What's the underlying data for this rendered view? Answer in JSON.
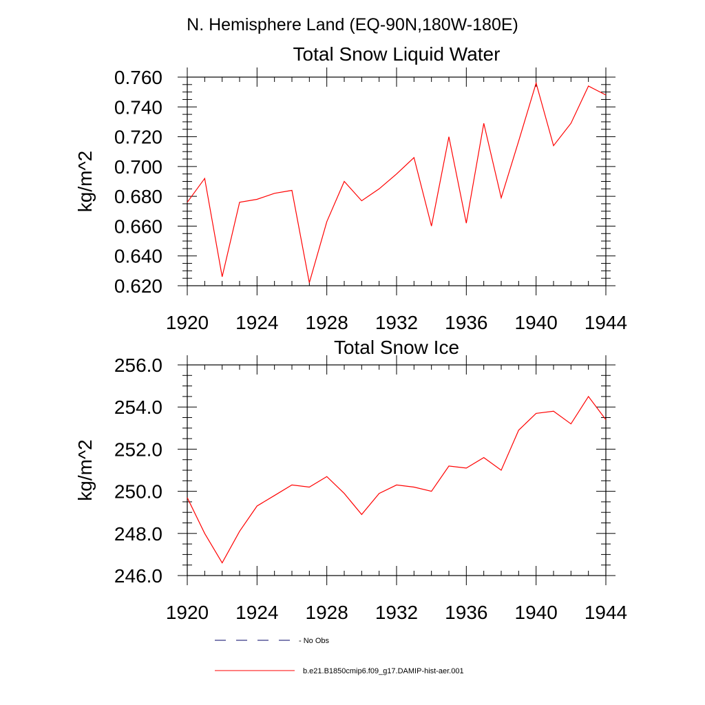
{
  "page_title": "N. Hemisphere Land (EQ-90N,180W-180E)",
  "colors": {
    "series": "#ff0000",
    "obs": "#000066",
    "axis": "#000000"
  },
  "chart_data": [
    {
      "type": "line",
      "title": "Total Snow Liquid Water",
      "ylabel": "kg/m^2",
      "xlim": [
        1920,
        1944
      ],
      "ylim": [
        0.62,
        0.76
      ],
      "x_ticks": [
        1920,
        1924,
        1928,
        1932,
        1936,
        1940,
        1944
      ],
      "x_tick_labels": [
        "1920",
        "1924",
        "1928",
        "1932",
        "1936",
        "1940",
        "1944"
      ],
      "y_ticks": [
        0.62,
        0.64,
        0.66,
        0.68,
        0.7,
        0.72,
        0.74,
        0.76
      ],
      "y_tick_labels": [
        "0.620",
        "0.640",
        "0.660",
        "0.680",
        "0.700",
        "0.720",
        "0.740",
        "0.760"
      ],
      "grid": false,
      "series": [
        {
          "name": "b.e21.B1850cmip6.f09_g17.DAMIP-hist-aer.001",
          "x": [
            1920,
            1921,
            1922,
            1923,
            1924,
            1925,
            1926,
            1927,
            1928,
            1929,
            1930,
            1931,
            1932,
            1933,
            1934,
            1935,
            1936,
            1937,
            1938,
            1939,
            1940,
            1941,
            1942,
            1943,
            1944
          ],
          "y": [
            0.676,
            0.692,
            0.626,
            0.676,
            0.678,
            0.682,
            0.684,
            0.622,
            0.663,
            0.69,
            0.677,
            0.685,
            0.695,
            0.706,
            0.66,
            0.72,
            0.662,
            0.729,
            0.679,
            0.717,
            0.756,
            0.714,
            0.729,
            0.754,
            0.748
          ]
        }
      ]
    },
    {
      "type": "line",
      "title": "Total Snow Ice",
      "ylabel": "kg/m^2",
      "xlim": [
        1920,
        1944
      ],
      "ylim": [
        246.0,
        256.0
      ],
      "x_ticks": [
        1920,
        1924,
        1928,
        1932,
        1936,
        1940,
        1944
      ],
      "x_tick_labels": [
        "1920",
        "1924",
        "1928",
        "1932",
        "1936",
        "1940",
        "1944"
      ],
      "y_ticks": [
        246.0,
        248.0,
        250.0,
        252.0,
        254.0,
        256.0
      ],
      "y_tick_labels": [
        "246.0",
        "248.0",
        "250.0",
        "252.0",
        "254.0",
        "256.0"
      ],
      "grid": false,
      "series": [
        {
          "name": "b.e21.B1850cmip6.f09_g17.DAMIP-hist-aer.001",
          "x": [
            1920,
            1921,
            1922,
            1923,
            1924,
            1925,
            1926,
            1927,
            1928,
            1929,
            1930,
            1931,
            1932,
            1933,
            1934,
            1935,
            1936,
            1937,
            1938,
            1939,
            1940,
            1941,
            1942,
            1943,
            1944
          ],
          "y": [
            249.7,
            248.0,
            246.6,
            248.1,
            249.3,
            249.8,
            250.3,
            250.2,
            250.7,
            249.9,
            248.9,
            249.9,
            250.3,
            250.2,
            250.0,
            251.2,
            251.1,
            251.6,
            251.0,
            252.9,
            253.7,
            253.8,
            253.2,
            254.5,
            253.4
          ]
        }
      ]
    }
  ],
  "legend": {
    "entries": [
      {
        "label": "- No Obs",
        "style": "dashed"
      },
      {
        "label": "b.e21.B1850cmip6.f09_g17.DAMIP-hist-aer.001",
        "style": "solid"
      }
    ]
  }
}
